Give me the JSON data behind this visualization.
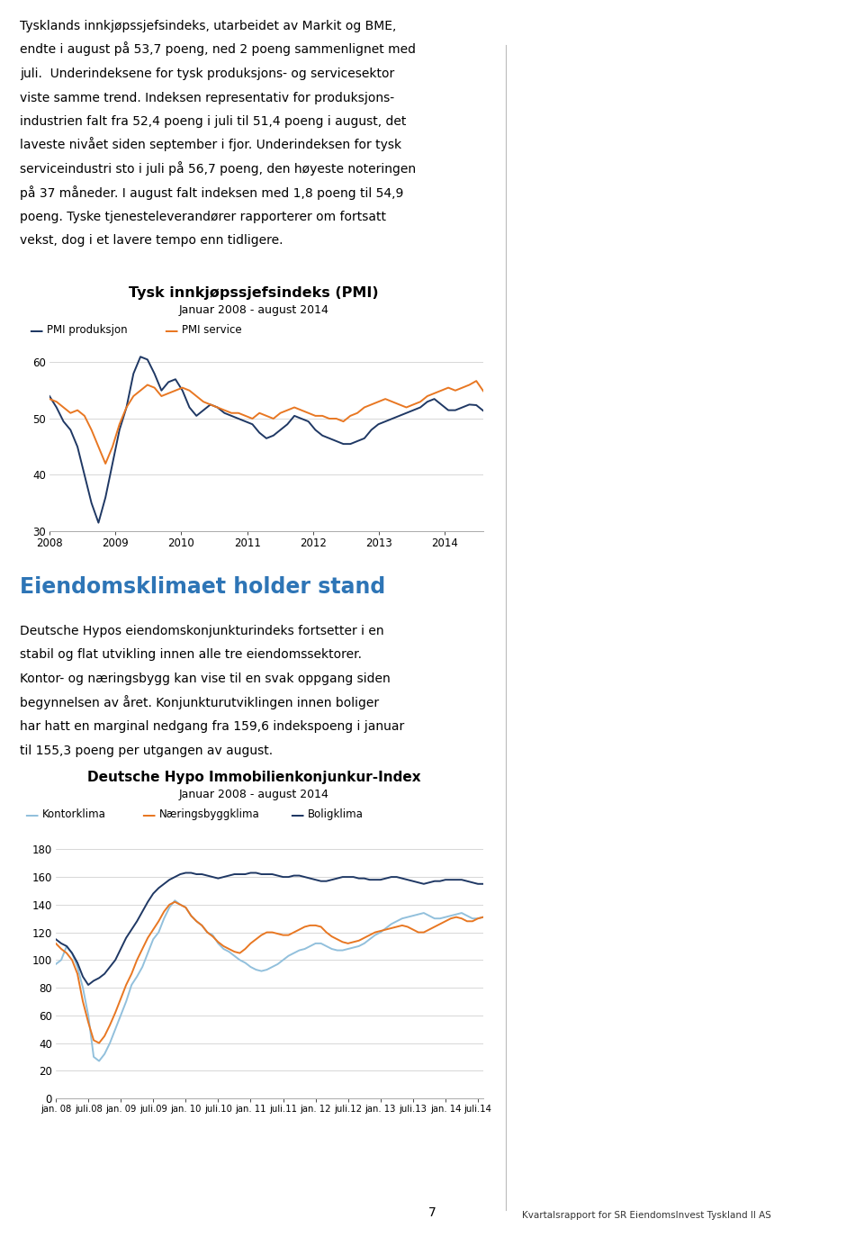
{
  "page_title1": "Tysk innkjøpssjefsindeks (PMI)",
  "page_subtitle1": "Januar 2008 - august 2014",
  "legend1": [
    "PMI produksjon",
    "PMI service"
  ],
  "color_produksjon": "#1f3864",
  "color_service": "#e87722",
  "ylim1": [
    30,
    62
  ],
  "yticks1": [
    30,
    40,
    50,
    60
  ],
  "xtick_labels1": [
    "2008",
    "2009",
    "2010",
    "2011",
    "2012",
    "2013",
    "2014"
  ],
  "page_title2": "Deutsche Hypo Immobilienkonjunkur-Index",
  "page_subtitle2": "Januar 2008 - august 2014",
  "legend2": [
    "Kontorklima",
    "Næringsbyggklima",
    "Boligklima"
  ],
  "color_kontor": "#92c0dc",
  "color_naering": "#e87722",
  "color_bolig": "#1f3864",
  "ylim2": [
    0,
    190
  ],
  "yticks2": [
    0,
    20,
    40,
    60,
    80,
    100,
    120,
    140,
    160,
    180
  ],
  "xtick_labels2": [
    "jan. 08",
    "juli.08",
    "jan. 09",
    "juli.09",
    "jan. 10",
    "juli.10",
    "jan. 11",
    "juli.11",
    "jan. 12",
    "juli.12",
    "jan. 13",
    "juli.13",
    "jan. 14",
    "juli.14"
  ],
  "text_block1_lines": [
    "Tysklands innkjøpssjefsindeks, utarbeidet av Markit og BME,",
    "endte i august på 53,7 poeng, ned 2 poeng sammenlignet med",
    "juli.  Underindeksene for tysk produksjons- og servicesektor",
    "viste samme trend. Indeksen representativ for produksjons-",
    "industrien falt fra 52,4 poeng i juli til 51,4 poeng i august, det",
    "laveste nivået siden september i fjor. Underindeksen for tysk",
    "serviceindustri sto i juli på 56,7 poeng, den høyeste noteringen",
    "på 37 måneder. I august falt indeksen med 1,8 poeng til 54,9",
    "poeng. Tyske tjenesteleverandører rapporterer om fortsatt",
    "vekst, dog i et lavere tempo enn tidligere."
  ],
  "text_block2_lines": [
    "Deutsche Hypos eiendomskonjunkturindeks fortsetter i en",
    "stabil og flat utvikling innen alle tre eiendomssektorer.",
    "Kontor- og næringsbygg kan vise til en svak oppgang siden",
    "begynnelsen av året. Konjunkturutviklingen innen boliger",
    "har hatt en marginal nedgang fra 159,6 indekspoeng i januar",
    "til 155,3 poeng per utgangen av august."
  ],
  "section_title2": "Eiendomsklimaet holder stand",
  "footer_text": "Kvartalsrapport for SR EiendomsInvest Tyskland II AS",
  "footer_page": "7",
  "pmi_produksjon": [
    54.0,
    52.0,
    49.5,
    48.0,
    45.0,
    40.0,
    35.0,
    31.5,
    36.0,
    42.0,
    48.0,
    52.0,
    58.0,
    61.0,
    60.5,
    58.0,
    55.0,
    56.5,
    57.0,
    55.0,
    52.0,
    50.5,
    51.5,
    52.5,
    52.0,
    51.0,
    50.5,
    50.0,
    49.5,
    49.0,
    47.5,
    46.5,
    47.0,
    48.0,
    49.0,
    50.5,
    50.0,
    49.5,
    48.0,
    47.0,
    46.5,
    46.0,
    45.5,
    45.5,
    46.0,
    46.5,
    48.0,
    49.0,
    49.5,
    50.0,
    50.5,
    51.0,
    51.5,
    52.0,
    53.0,
    53.5,
    52.5,
    51.5,
    51.5,
    52.0,
    52.5,
    52.4,
    51.4
  ],
  "pmi_service": [
    53.5,
    53.0,
    52.0,
    51.0,
    51.5,
    50.5,
    48.0,
    45.0,
    42.0,
    45.0,
    49.0,
    52.0,
    54.0,
    55.0,
    56.0,
    55.5,
    54.0,
    54.5,
    55.0,
    55.5,
    55.0,
    54.0,
    53.0,
    52.5,
    52.0,
    51.5,
    51.0,
    51.0,
    50.5,
    50.0,
    51.0,
    50.5,
    50.0,
    51.0,
    51.5,
    52.0,
    51.5,
    51.0,
    50.5,
    50.5,
    50.0,
    50.0,
    49.5,
    50.5,
    51.0,
    52.0,
    52.5,
    53.0,
    53.5,
    53.0,
    52.5,
    52.0,
    52.5,
    53.0,
    54.0,
    54.5,
    55.0,
    55.5,
    55.0,
    55.5,
    56.0,
    56.7,
    54.9
  ],
  "kontor": [
    97,
    100,
    110,
    105,
    95,
    80,
    60,
    30,
    27,
    32,
    40,
    50,
    60,
    70,
    82,
    88,
    95,
    105,
    115,
    120,
    130,
    138,
    143,
    140,
    138,
    132,
    128,
    125,
    120,
    118,
    112,
    108,
    106,
    103,
    100,
    98,
    95,
    93,
    92,
    93,
    95,
    97,
    100,
    103,
    105,
    107,
    108,
    110,
    112,
    112,
    110,
    108,
    107,
    107,
    108,
    109,
    110,
    112,
    115,
    118,
    120,
    123,
    126,
    128,
    130,
    131,
    132,
    133,
    134,
    132,
    130,
    130,
    131,
    132,
    133,
    134,
    132,
    130,
    130,
    131
  ],
  "naering": [
    112,
    108,
    105,
    100,
    90,
    70,
    55,
    42,
    40,
    45,
    53,
    62,
    72,
    82,
    90,
    100,
    108,
    116,
    122,
    128,
    135,
    140,
    142,
    140,
    138,
    132,
    128,
    125,
    120,
    117,
    113,
    110,
    108,
    106,
    105,
    108,
    112,
    115,
    118,
    120,
    120,
    119,
    118,
    118,
    120,
    122,
    124,
    125,
    125,
    124,
    120,
    117,
    115,
    113,
    112,
    113,
    114,
    116,
    118,
    120,
    121,
    122,
    123,
    124,
    125,
    124,
    122,
    120,
    120,
    122,
    124,
    126,
    128,
    130,
    131,
    130,
    128,
    128,
    130,
    131
  ],
  "bolig": [
    115,
    112,
    110,
    105,
    98,
    88,
    82,
    85,
    87,
    90,
    95,
    100,
    108,
    116,
    122,
    128,
    135,
    142,
    148,
    152,
    155,
    158,
    160,
    162,
    163,
    163,
    162,
    162,
    161,
    160,
    159,
    160,
    161,
    162,
    162,
    162,
    163,
    163,
    162,
    162,
    162,
    161,
    160,
    160,
    161,
    161,
    160,
    159,
    158,
    157,
    157,
    158,
    159,
    160,
    160,
    160,
    159,
    159,
    158,
    158,
    158,
    159,
    160,
    160,
    159,
    158,
    157,
    156,
    155,
    156,
    157,
    157,
    158,
    158,
    158,
    158,
    157,
    156,
    155,
    155
  ]
}
